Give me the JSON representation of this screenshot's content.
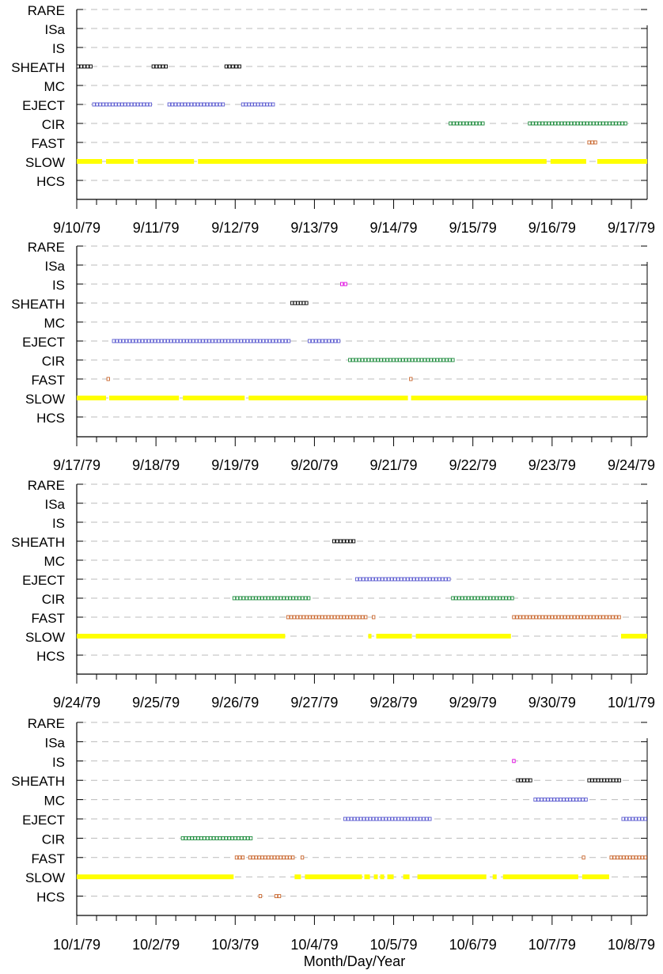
{
  "colors": {
    "SLOW": "#ffff00",
    "FAST": "#c8642a",
    "CIR": "#1a8a3a",
    "EJECT": "#5a5ad0",
    "MC": "#5a5ad0",
    "SHEATH": "#000000",
    "IS": "#e000e0",
    "ISa": "#000000",
    "RARE": "#000000",
    "HCS": "#c8642a",
    "grid": "#bbbbbb",
    "axis": "#000000"
  },
  "chart_data": [
    {
      "type": "timeline",
      "categories": [
        "RARE",
        "ISa",
        "IS",
        "SHEATH",
        "MC",
        "EJECT",
        "CIR",
        "FAST",
        "SLOW",
        "HCS"
      ],
      "x_tick_labels": [
        "9/10/79",
        "9/11/79",
        "9/12/79",
        "9/13/79",
        "9/14/79",
        "9/15/79",
        "9/16/79",
        "9/17/79"
      ],
      "xlim": [
        0,
        7.2
      ],
      "xlabel": "",
      "series": [
        {
          "category": "SHEATH",
          "intervals": [
            [
              0.0,
              0.2
            ],
            [
              0.95,
              1.15
            ],
            [
              1.87,
              2.08
            ]
          ]
        },
        {
          "category": "EJECT",
          "intervals": [
            [
              0.2,
              0.95
            ],
            [
              1.15,
              1.87
            ],
            [
              2.08,
              2.5
            ]
          ]
        },
        {
          "category": "CIR",
          "intervals": [
            [
              4.7,
              5.15
            ],
            [
              5.7,
              6.95
            ]
          ]
        },
        {
          "category": "FAST",
          "intervals": [
            [
              6.45,
              6.57
            ]
          ]
        },
        {
          "category": "SLOW",
          "intervals": [
            [
              0.0,
              0.32
            ],
            [
              0.37,
              0.72
            ],
            [
              0.77,
              1.48
            ],
            [
              1.53,
              5.93
            ],
            [
              5.98,
              6.43
            ],
            [
              6.57,
              7.2
            ]
          ]
        }
      ]
    },
    {
      "type": "timeline",
      "categories": [
        "RARE",
        "ISa",
        "IS",
        "SHEATH",
        "MC",
        "EJECT",
        "CIR",
        "FAST",
        "SLOW",
        "HCS"
      ],
      "x_tick_labels": [
        "9/17/79",
        "9/18/79",
        "9/19/79",
        "9/20/79",
        "9/21/79",
        "9/22/79",
        "9/23/79",
        "9/24/79"
      ],
      "xlim": [
        0,
        7.2
      ],
      "xlabel": "",
      "series": [
        {
          "category": "IS",
          "intervals": [
            [
              3.33,
              3.42
            ]
          ]
        },
        {
          "category": "SHEATH",
          "intervals": [
            [
              2.7,
              2.92
            ]
          ]
        },
        {
          "category": "EJECT",
          "intervals": [
            [
              0.45,
              2.7
            ],
            [
              2.92,
              3.33
            ]
          ]
        },
        {
          "category": "CIR",
          "intervals": [
            [
              3.43,
              4.77
            ]
          ]
        },
        {
          "category": "FAST",
          "intervals": [
            [
              0.38,
              0.38
            ],
            [
              4.2,
              4.2
            ]
          ]
        },
        {
          "category": "SLOW",
          "intervals": [
            [
              0.0,
              0.37
            ],
            [
              0.41,
              1.29
            ],
            [
              1.34,
              2.12
            ],
            [
              2.17,
              4.18
            ],
            [
              4.22,
              7.2
            ]
          ]
        }
      ]
    },
    {
      "type": "timeline",
      "categories": [
        "RARE",
        "ISa",
        "IS",
        "SHEATH",
        "MC",
        "EJECT",
        "CIR",
        "FAST",
        "SLOW",
        "HCS"
      ],
      "x_tick_labels": [
        "9/24/79",
        "9/25/79",
        "9/26/79",
        "9/27/79",
        "9/28/79",
        "9/29/79",
        "9/30/79",
        "10/1/79"
      ],
      "xlim": [
        0,
        7.2
      ],
      "xlabel": "",
      "series": [
        {
          "category": "SHEATH",
          "intervals": [
            [
              3.23,
              3.52
            ]
          ]
        },
        {
          "category": "EJECT",
          "intervals": [
            [
              3.52,
              4.72
            ]
          ]
        },
        {
          "category": "CIR",
          "intervals": [
            [
              1.97,
              2.95
            ],
            [
              4.73,
              5.52
            ]
          ]
        },
        {
          "category": "FAST",
          "intervals": [
            [
              2.65,
              3.67
            ],
            [
              3.73,
              3.73
            ],
            [
              5.5,
              6.87
            ]
          ]
        },
        {
          "category": "SLOW",
          "intervals": [
            [
              0.0,
              2.63
            ],
            [
              3.68,
              3.72
            ],
            [
              3.78,
              4.23
            ],
            [
              4.28,
              5.48
            ],
            [
              6.87,
              7.2
            ]
          ]
        }
      ]
    },
    {
      "type": "timeline",
      "categories": [
        "RARE",
        "ISa",
        "IS",
        "SHEATH",
        "MC",
        "EJECT",
        "CIR",
        "FAST",
        "SLOW",
        "HCS"
      ],
      "x_tick_labels": [
        "10/1/79",
        "10/2/79",
        "10/3/79",
        "10/4/79",
        "10/5/79",
        "10/6/79",
        "10/7/79",
        "10/8/79"
      ],
      "xlim": [
        0,
        7.2
      ],
      "xlabel": "Month/Day/Year",
      "series": [
        {
          "category": "IS",
          "intervals": [
            [
              5.5,
              5.5
            ]
          ]
        },
        {
          "category": "SHEATH",
          "intervals": [
            [
              5.55,
              5.75
            ],
            [
              6.45,
              6.87
            ]
          ]
        },
        {
          "category": "MC",
          "intervals": [
            [
              5.77,
              6.45
            ]
          ]
        },
        {
          "category": "EJECT",
          "intervals": [
            [
              3.37,
              4.48
            ],
            [
              6.88,
              7.2
            ]
          ]
        },
        {
          "category": "CIR",
          "intervals": [
            [
              1.32,
              2.22
            ]
          ]
        },
        {
          "category": "FAST",
          "intervals": [
            [
              2.0,
              2.12
            ],
            [
              2.17,
              2.75
            ],
            [
              2.83,
              2.83
            ],
            [
              6.38,
              6.38
            ],
            [
              6.73,
              7.2
            ]
          ]
        },
        {
          "category": "SLOW",
          "intervals": [
            [
              0.0,
              1.98
            ],
            [
              2.75,
              2.83
            ],
            [
              2.88,
              3.6
            ],
            [
              3.63,
              3.7
            ],
            [
              3.75,
              3.8
            ],
            [
              3.83,
              3.88
            ],
            [
              3.92,
              4.0
            ],
            [
              4.12,
              4.2
            ],
            [
              4.3,
              5.17
            ],
            [
              5.25,
              5.3
            ],
            [
              5.38,
              6.33
            ],
            [
              6.38,
              6.72
            ]
          ]
        },
        {
          "category": "HCS",
          "intervals": [
            [
              2.3,
              2.3
            ],
            [
              2.5,
              2.58
            ]
          ]
        }
      ]
    }
  ]
}
